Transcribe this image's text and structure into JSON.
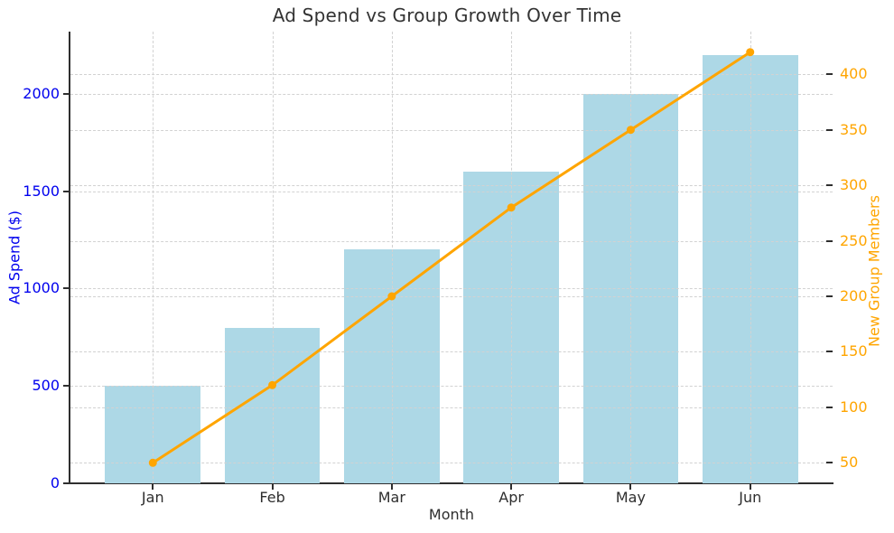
{
  "chart_data": {
    "type": "bar",
    "subtype": "bar-and-line dual axis combo",
    "title": "Ad Spend vs Group Growth Over Time",
    "xlabel": "Month",
    "categories": [
      "Jan",
      "Feb",
      "Mar",
      "Apr",
      "May",
      "Jun"
    ],
    "x_lim": [
      -0.69,
      5.69
    ],
    "grid": {
      "on": true,
      "style": "dashed",
      "color": "#d2d2d2",
      "vertical_at_categories": true
    },
    "legend_position": "none",
    "text_color": "#2e2e2e",
    "spine_color": "#2f2f2f",
    "left_axis": {
      "label": "Ad Spend ($)",
      "color": "#0000EE",
      "ticks": [
        0,
        500,
        1000,
        1500,
        2000
      ],
      "lim": [
        0,
        2320
      ]
    },
    "right_axis": {
      "label": "New Group Members",
      "color": "#FFA500",
      "ticks": [
        50,
        100,
        150,
        200,
        250,
        300,
        350,
        400
      ],
      "lim": [
        31.5,
        438.5
      ]
    },
    "series": [
      {
        "name": "Ad Spend ($)",
        "type": "bar",
        "axis": "left",
        "color": "#ADD8E6",
        "bar_width_fraction": 0.8,
        "values": [
          500,
          800,
          1200,
          1600,
          2000,
          2200
        ]
      },
      {
        "name": "New Group Members",
        "type": "line",
        "axis": "right",
        "color": "#FFA500",
        "marker": "circle",
        "marker_radius": 4.5,
        "line_width": 3,
        "values": [
          50,
          120,
          200,
          280,
          350,
          420
        ]
      }
    ]
  }
}
